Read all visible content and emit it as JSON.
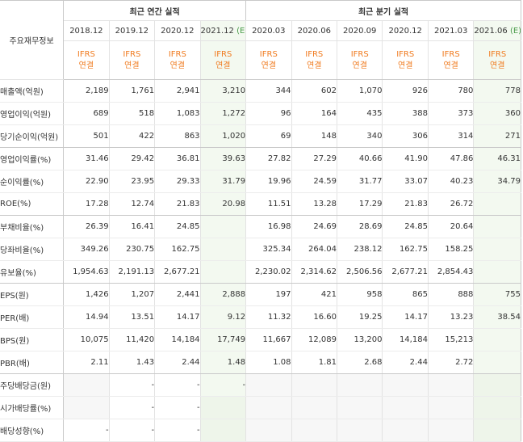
{
  "corner_label": "주요재무정보",
  "group_headers": {
    "annual": "최근 연간 실적",
    "quarterly": "최근 분기 실적"
  },
  "periods": [
    {
      "label": "2018.12",
      "est": ""
    },
    {
      "label": "2019.12",
      "est": ""
    },
    {
      "label": "2020.12",
      "est": ""
    },
    {
      "label": "2021.12",
      "est": "(E)"
    },
    {
      "label": "2020.03",
      "est": ""
    },
    {
      "label": "2020.06",
      "est": ""
    },
    {
      "label": "2020.09",
      "est": ""
    },
    {
      "label": "2020.12",
      "est": ""
    },
    {
      "label": "2021.03",
      "est": ""
    },
    {
      "label": "2021.06",
      "est": "(E)"
    }
  ],
  "ifrs": {
    "line1": "IFRS",
    "line2": "연결"
  },
  "rows": [
    {
      "label": "매출액(억원)",
      "values": [
        "2,189",
        "1,761",
        "2,941",
        "3,210",
        "344",
        "602",
        "1,070",
        "926",
        "780",
        "778"
      ]
    },
    {
      "label": "영업이익(억원)",
      "values": [
        "689",
        "518",
        "1,083",
        "1,272",
        "96",
        "164",
        "435",
        "388",
        "373",
        "360"
      ]
    },
    {
      "label": "당기순이익(억원)",
      "values": [
        "501",
        "422",
        "863",
        "1,020",
        "69",
        "148",
        "340",
        "306",
        "314",
        "271"
      ]
    },
    {
      "label": "영업이익률(%)",
      "values": [
        "31.46",
        "29.42",
        "36.81",
        "39.63",
        "27.82",
        "27.29",
        "40.66",
        "41.90",
        "47.86",
        "46.31"
      ]
    },
    {
      "label": "순이익률(%)",
      "values": [
        "22.90",
        "23.95",
        "29.33",
        "31.79",
        "19.96",
        "24.59",
        "31.77",
        "33.07",
        "40.23",
        "34.79"
      ]
    },
    {
      "label": "ROE(%)",
      "values": [
        "17.28",
        "12.74",
        "21.83",
        "20.98",
        "11.51",
        "13.28",
        "17.29",
        "21.83",
        "26.72",
        ""
      ]
    },
    {
      "label": "부채비율(%)",
      "values": [
        "26.39",
        "16.41",
        "24.85",
        "",
        "16.98",
        "24.69",
        "28.69",
        "24.85",
        "20.64",
        ""
      ]
    },
    {
      "label": "당좌비율(%)",
      "values": [
        "349.26",
        "230.75",
        "162.75",
        "",
        "325.34",
        "264.04",
        "238.12",
        "162.75",
        "158.25",
        ""
      ]
    },
    {
      "label": "유보율(%)",
      "values": [
        "1,954.63",
        "2,191.13",
        "2,677.21",
        "",
        "2,230.02",
        "2,314.62",
        "2,506.56",
        "2,677.21",
        "2,854.43",
        ""
      ]
    },
    {
      "label": "EPS(원)",
      "values": [
        "1,426",
        "1,207",
        "2,441",
        "2,888",
        "197",
        "421",
        "958",
        "865",
        "888",
        "755"
      ]
    },
    {
      "label": "PER(배)",
      "values": [
        "14.94",
        "13.51",
        "14.17",
        "9.12",
        "11.32",
        "16.60",
        "19.25",
        "14.17",
        "13.23",
        "38.54"
      ]
    },
    {
      "label": "BPS(원)",
      "values": [
        "10,075",
        "11,420",
        "14,184",
        "17,749",
        "11,667",
        "12,089",
        "13,200",
        "14,184",
        "15,213",
        ""
      ]
    },
    {
      "label": "PBR(배)",
      "values": [
        "2.11",
        "1.43",
        "2.44",
        "1.48",
        "1.08",
        "1.81",
        "2.68",
        "2.44",
        "2.72",
        ""
      ]
    },
    {
      "label": "주당배당금(원)",
      "values": [
        "",
        "-",
        "-",
        "-",
        "",
        "",
        "",
        "",
        "",
        ""
      ]
    },
    {
      "label": "시가배당률(%)",
      "values": [
        "",
        "-",
        "-",
        "",
        "",
        "",
        "",
        "",
        "",
        ""
      ]
    },
    {
      "label": "배당성향(%)",
      "values": [
        "-",
        "-",
        "-",
        "",
        "",
        "",
        "",
        "",
        "",
        ""
      ]
    }
  ],
  "colors": {
    "estimate_bg": "#f3f9f0",
    "estimate_text": "#4a9b4a",
    "ifrs_text": "#f07b1f",
    "empty_bg": "#f7f7f7",
    "border": "#c9c9c9"
  }
}
